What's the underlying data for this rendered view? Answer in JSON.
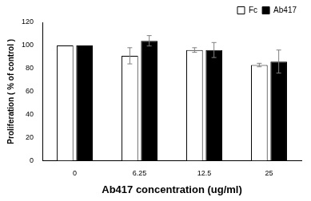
{
  "chart_data": {
    "type": "bar",
    "x_label": "Ab417 concentration (ug/ml)",
    "y_label": "Proliferation ( % of control )",
    "categories": [
      "0",
      "6.25",
      "12.5",
      "25"
    ],
    "series": [
      {
        "name": "Fc",
        "color": "#ffffff",
        "values": [
          100,
          91,
          96,
          83
        ],
        "errors": [
          0,
          7,
          2,
          1.5
        ]
      },
      {
        "name": "Ab417",
        "color": "#000000",
        "values": [
          100,
          104,
          96,
          86
        ],
        "errors": [
          0,
          4.5,
          6.5,
          10
        ]
      }
    ],
    "ylim": [
      0,
      120
    ],
    "yticks": [
      0,
      20,
      40,
      60,
      80,
      100,
      120
    ],
    "grid": false,
    "legend": "upper right"
  }
}
